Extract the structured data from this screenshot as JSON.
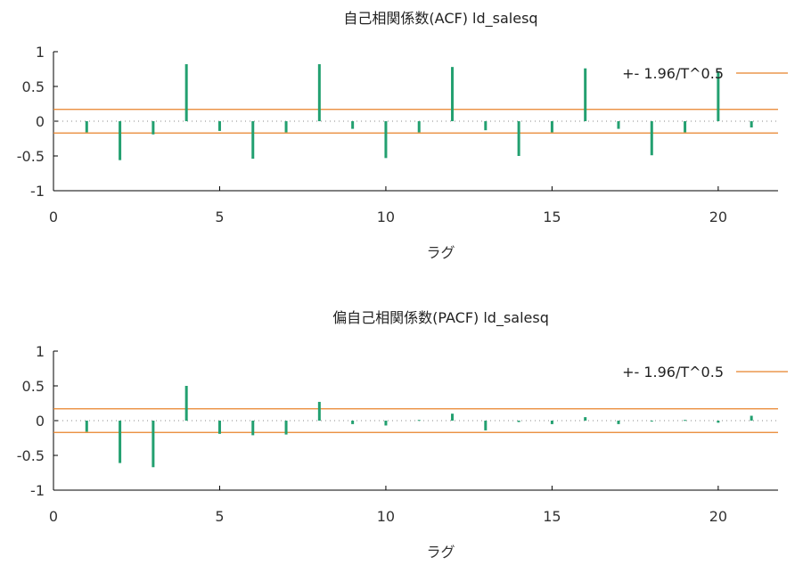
{
  "colors": {
    "bar": "#23a070",
    "band": "#e8822a",
    "axis": "#000000",
    "zero_line": "#888888"
  },
  "chart_data": [
    {
      "type": "bar",
      "title": "自己相関係数(ACF) ld_salesq",
      "xlabel": "ラグ",
      "ylabel": "",
      "xlim": [
        0,
        21.8
      ],
      "ylim": [
        -1,
        1
      ],
      "xticks": [
        "0",
        "5",
        "10",
        "15",
        "20"
      ],
      "yticks": [
        "-1",
        "-0.5",
        "0",
        "0.5",
        "1"
      ],
      "legend": {
        "label": "+- 1.96/T^0.5",
        "placement": "top-right"
      },
      "band": 0.17,
      "x": [
        1,
        2,
        3,
        4,
        5,
        6,
        7,
        8,
        9,
        10,
        11,
        12,
        13,
        14,
        15,
        16,
        17,
        18,
        19,
        20,
        21
      ],
      "values": [
        -0.16,
        -0.56,
        -0.19,
        0.82,
        -0.14,
        -0.54,
        -0.16,
        0.82,
        -0.11,
        -0.53,
        -0.16,
        0.78,
        -0.13,
        -0.5,
        -0.16,
        0.76,
        -0.11,
        -0.49,
        -0.16,
        0.72,
        -0.09
      ]
    },
    {
      "type": "bar",
      "title": "偏自己相関係数(PACF) ld_salesq",
      "xlabel": "ラグ",
      "ylabel": "",
      "xlim": [
        0,
        21.8
      ],
      "ylim": [
        -1,
        1
      ],
      "xticks": [
        "0",
        "5",
        "10",
        "15",
        "20"
      ],
      "yticks": [
        "-1",
        "-0.5",
        "0",
        "0.5",
        "1"
      ],
      "legend": {
        "label": "+- 1.96/T^0.5",
        "placement": "top-right"
      },
      "band": 0.17,
      "x": [
        1,
        2,
        3,
        4,
        5,
        6,
        7,
        8,
        9,
        10,
        11,
        12,
        13,
        14,
        15,
        16,
        17,
        18,
        19,
        20,
        21
      ],
      "values": [
        -0.16,
        -0.61,
        -0.67,
        0.5,
        -0.19,
        -0.21,
        -0.2,
        0.27,
        -0.05,
        -0.07,
        0.01,
        0.1,
        -0.14,
        -0.02,
        -0.05,
        0.05,
        -0.05,
        0.0,
        0.01,
        -0.03,
        0.07
      ]
    }
  ]
}
